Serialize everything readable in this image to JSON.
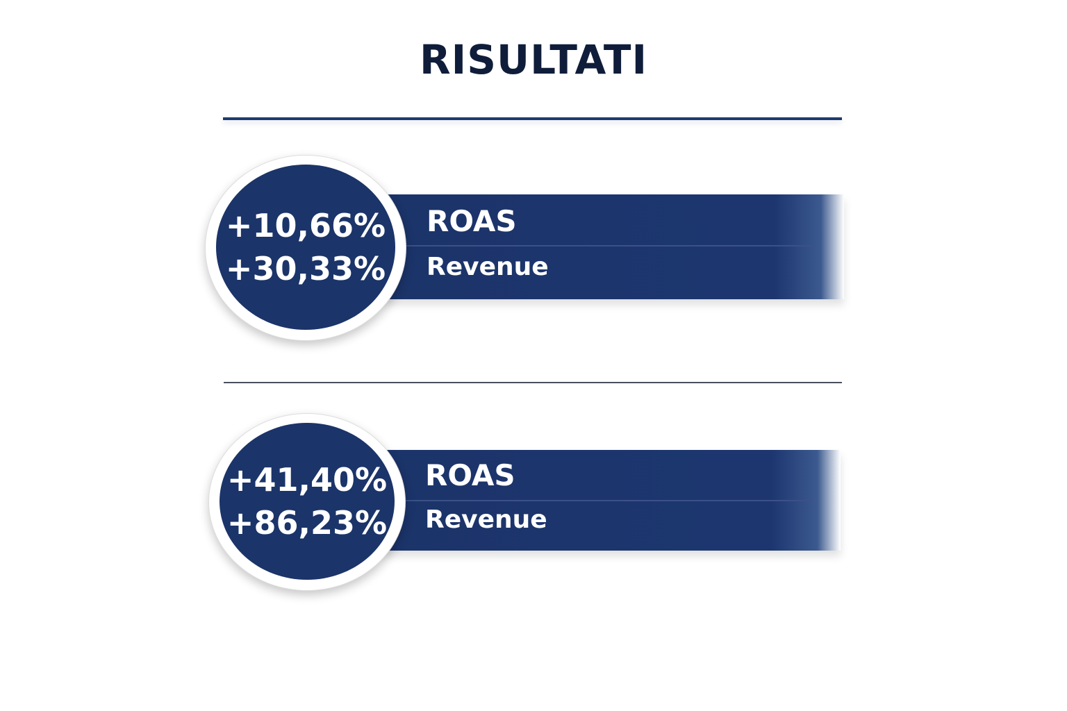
{
  "title": "RISULTATI",
  "colors": {
    "navy": "#1b3469",
    "title": "#0f1d3a"
  },
  "results": [
    {
      "values": [
        "+10,66%",
        "+30,33%"
      ],
      "labels": [
        "ROAS",
        "Revenue"
      ]
    },
    {
      "values": [
        "+41,40%",
        "+86,23%"
      ],
      "labels": [
        "ROAS",
        "Revenue"
      ]
    }
  ]
}
